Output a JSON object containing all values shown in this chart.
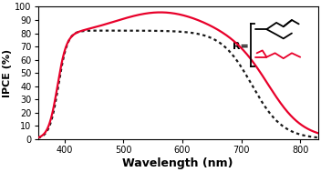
{
  "title": "",
  "xlabel": "Wavelength (nm)",
  "ylabel": "IPCE (%)",
  "xlim": [
    355,
    830
  ],
  "ylim": [
    0,
    100
  ],
  "xticks": [
    400,
    500,
    600,
    700,
    800
  ],
  "yticks": [
    0,
    10,
    20,
    30,
    40,
    50,
    60,
    70,
    80,
    90,
    100
  ],
  "background_color": "#ffffff",
  "plot_bg_color": "#f0f0f0",
  "line1_color": "#1a1a1a",
  "line2_color": "#e8002a",
  "xlabel_fontsize": 9,
  "ylabel_fontsize": 8,
  "tick_fontsize": 7,
  "line_width": 1.6,
  "dashed_linewidth": 1.6
}
